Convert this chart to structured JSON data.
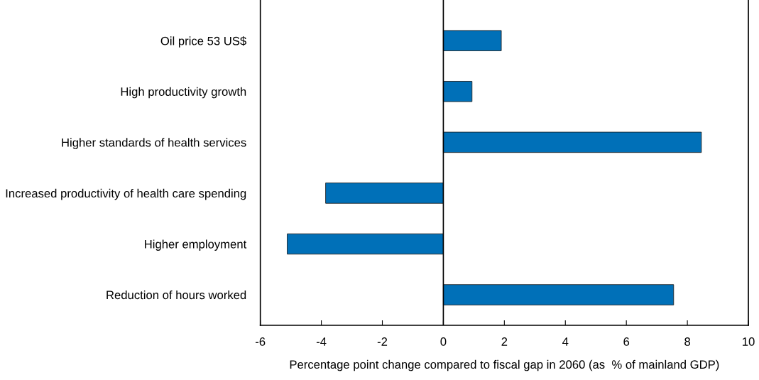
{
  "chart_data": {
    "type": "bar",
    "orientation": "horizontal",
    "xlabel": "Percentage point change compared to fiscal gap in 2060 (as  % of mainland GDP)",
    "categories": [
      "Oil price 53 US$",
      "High productivity growth",
      "Higher standards of health services",
      "Increased productivity of health care spending",
      "Higher employment",
      "Reduction of hours worked"
    ],
    "values": [
      1.9,
      0.94,
      8.46,
      -3.86,
      -5.12,
      7.55
    ],
    "color": "#0070b8",
    "xlim": [
      -6,
      10
    ],
    "xticks": [
      -6,
      -4,
      -2,
      0,
      2,
      4,
      6,
      8,
      10
    ],
    "ref_lines": [
      {
        "axis": "x",
        "value": 0,
        "color": "#000000"
      }
    ]
  }
}
